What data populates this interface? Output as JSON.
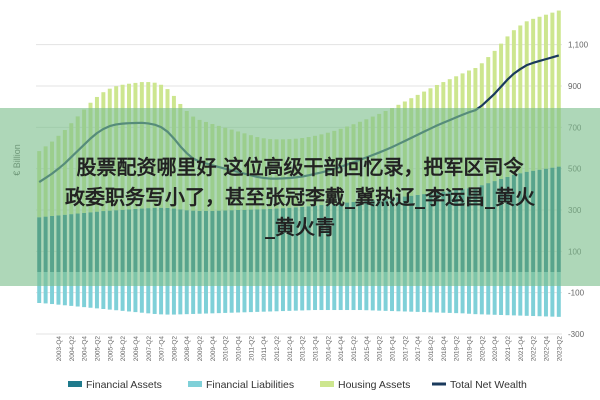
{
  "chart_data": {
    "type": "bar",
    "title": "",
    "ylabel": "€ Billion",
    "ylim": [
      -300,
      1200
    ],
    "yticks": [
      -300,
      -100,
      100,
      300,
      500,
      700,
      900,
      1100
    ],
    "grid": true,
    "legend_position": "bottom",
    "categories": [
      "2003-Q1",
      "2003-Q2",
      "2003-Q3",
      "2003-Q4",
      "2004-Q1",
      "2004-Q2",
      "2004-Q3",
      "2004-Q4",
      "2005-Q1",
      "2005-Q2",
      "2005-Q3",
      "2005-Q4",
      "2006-Q1",
      "2006-Q2",
      "2006-Q3",
      "2006-Q4",
      "2007-Q1",
      "2007-Q2",
      "2007-Q3",
      "2007-Q4",
      "2008-Q1",
      "2008-Q2",
      "2008-Q3",
      "2008-Q4",
      "2009-Q1",
      "2009-Q2",
      "2009-Q3",
      "2009-Q4",
      "2010-Q1",
      "2010-Q2",
      "2010-Q3",
      "2010-Q4",
      "2011-Q1",
      "2011-Q2",
      "2011-Q3",
      "2011-Q4",
      "2012-Q1",
      "2012-Q2",
      "2012-Q3",
      "2012-Q4",
      "2013-Q1",
      "2013-Q2",
      "2013-Q3",
      "2013-Q4",
      "2014-Q1",
      "2014-Q2",
      "2014-Q3",
      "2014-Q4",
      "2015-Q1",
      "2015-Q2",
      "2015-Q3",
      "2015-Q4",
      "2016-Q1",
      "2016-Q2",
      "2016-Q3",
      "2016-Q4",
      "2017-Q1",
      "2017-Q2",
      "2017-Q3",
      "2017-Q4",
      "2018-Q1",
      "2018-Q2",
      "2018-Q3",
      "2018-Q4",
      "2019-Q1",
      "2019-Q2",
      "2019-Q3",
      "2019-Q4",
      "2020-Q1",
      "2020-Q2",
      "2020-Q3",
      "2020-Q4",
      "2021-Q1",
      "2021-Q2",
      "2021-Q3",
      "2021-Q4",
      "2022-Q1",
      "2022-Q2",
      "2022-Q3",
      "2022-Q4",
      "2023-Q1",
      "2023-Q2"
    ],
    "xtick_labels": [
      "2003-Q4",
      "2004-Q2",
      "2004-Q4",
      "2005-Q2",
      "2005-Q4",
      "2006-Q2",
      "2006-Q4",
      "2007-Q2",
      "2007-Q4",
      "2008-Q2",
      "2008-Q4",
      "2009-Q2",
      "2009-Q4",
      "2010-Q2",
      "2010-Q4",
      "2011-Q2",
      "2011-Q4",
      "2012-Q2",
      "2012-Q4",
      "2013-Q2",
      "2013-Q4",
      "2014-Q2",
      "2014-Q4",
      "2015-Q2",
      "2015-Q4",
      "2016-Q2",
      "2016-Q4",
      "2017-Q2",
      "2017-Q4",
      "2018-Q2",
      "2018-Q4",
      "2019-Q2",
      "2019-Q4",
      "2020-Q2",
      "2020-Q4",
      "2021-Q2",
      "2021-Q4",
      "2022-Q2",
      "2022-Q4",
      "2023-Q2"
    ],
    "series": [
      {
        "name": "Financial Assets",
        "color": "#1f7a8c",
        "kind": "bar",
        "values": [
          265,
          268,
          271,
          274,
          277,
          280,
          283,
          286,
          289,
          292,
          295,
          297,
          299,
          301,
          303,
          305,
          307,
          309,
          311,
          311,
          310,
          307,
          303,
          299,
          297,
          296,
          296,
          296,
          297,
          298,
          299,
          300,
          301,
          302,
          303,
          304,
          305,
          307,
          309,
          311,
          313,
          315,
          318,
          321,
          324,
          327,
          330,
          333,
          336,
          339,
          342,
          345,
          348,
          351,
          354,
          357,
          361,
          365,
          369,
          373,
          377,
          381,
          385,
          389,
          393,
          397,
          401,
          405,
          409,
          420,
          430,
          440,
          450,
          460,
          470,
          478,
          485,
          490,
          495,
          500,
          505,
          510
        ]
      },
      {
        "name": "Financial Liabilities",
        "color": "#7fd0d8",
        "kind": "bar",
        "values": [
          -150,
          -152,
          -155,
          -158,
          -161,
          -164,
          -167,
          -170,
          -173,
          -176,
          -179,
          -182,
          -185,
          -188,
          -191,
          -194,
          -197,
          -200,
          -203,
          -205,
          -206,
          -206,
          -205,
          -204,
          -203,
          -202,
          -201,
          -200,
          -199,
          -198,
          -197,
          -196,
          -195,
          -194,
          -193,
          -192,
          -191,
          -190,
          -189,
          -188,
          -187,
          -186,
          -185,
          -184,
          -184,
          -184,
          -184,
          -184,
          -184,
          -184,
          -184,
          -185,
          -186,
          -187,
          -188,
          -189,
          -190,
          -191,
          -192,
          -193,
          -194,
          -195,
          -196,
          -197,
          -198,
          -199,
          -200,
          -202,
          -204,
          -205,
          -206,
          -207,
          -208,
          -209,
          -210,
          -211,
          -212,
          -213,
          -214,
          -215,
          -216,
          -217
        ]
      },
      {
        "name": "Housing Assets",
        "color": "#cde68f",
        "kind": "bar",
        "values": [
          320,
          340,
          360,
          385,
          410,
          440,
          470,
          500,
          530,
          555,
          575,
          590,
          600,
          605,
          608,
          610,
          612,
          610,
          605,
          595,
          575,
          545,
          510,
          480,
          455,
          440,
          430,
          420,
          410,
          400,
          390,
          380,
          370,
          360,
          350,
          343,
          338,
          335,
          333,
          332,
          332,
          333,
          335,
          338,
          342,
          347,
          353,
          360,
          368,
          376,
          385,
          394,
          404,
          414,
          425,
          436,
          448,
          460,
          472,
          484,
          496,
          508,
          520,
          530,
          540,
          550,
          560,
          570,
          578,
          590,
          610,
          630,
          655,
          680,
          700,
          715,
          728,
          735,
          740,
          745,
          750,
          755
        ]
      },
      {
        "name": "Total Net Wealth",
        "color": "#1a3a5c",
        "kind": "line",
        "values": [
          435,
          455,
          476,
          500,
          526,
          556,
          586,
          616,
          646,
          672,
          692,
          706,
          714,
          718,
          720,
          721,
          722,
          719,
          713,
          701,
          679,
          646,
          608,
          575,
          549,
          534,
          525,
          516,
          508,
          500,
          492,
          484,
          476,
          468,
          460,
          455,
          452,
          452,
          453,
          455,
          458,
          462,
          468,
          475,
          482,
          490,
          499,
          509,
          520,
          531,
          543,
          554,
          566,
          578,
          591,
          604,
          619,
          634,
          649,
          664,
          679,
          694,
          709,
          722,
          735,
          748,
          761,
          773,
          783,
          805,
          834,
          863,
          897,
          931,
          960,
          982,
          1001,
          1012,
          1021,
          1030,
          1039,
          1048
        ]
      }
    ]
  },
  "overlay": {
    "text": "股票配资哪里好 这位高级干部回忆录，把军区司令\n政委职务写小了，甚至张冠李戴_冀热辽_李运昌_黄火\n_黄火青"
  }
}
